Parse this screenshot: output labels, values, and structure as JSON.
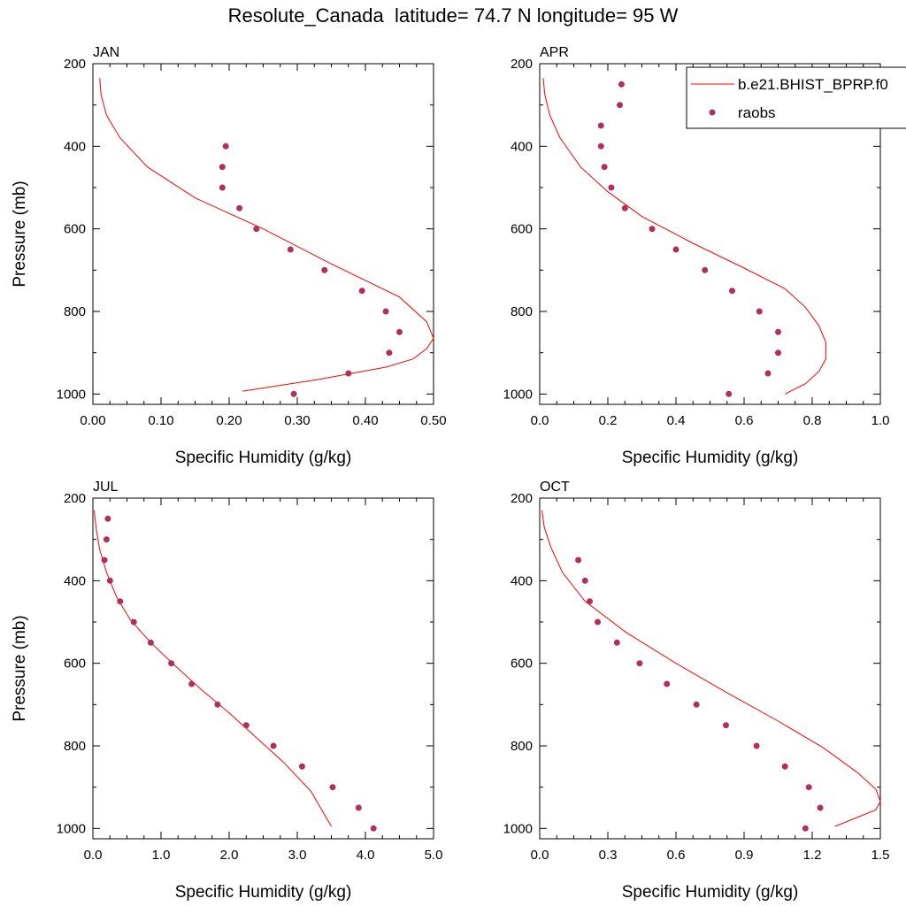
{
  "title": "Resolute_Canada  latitude= 74.7 N longitude= 95 W",
  "colors": {
    "model": "#ff0000",
    "obs": "#b0305a",
    "axis": "#000000"
  },
  "legend": {
    "model_label": "b.e21.BHIST_BPRP.f0",
    "obs_label": "raobs",
    "placement": "top-right of APR panel"
  },
  "chart_data": [
    {
      "type": "line+scatter",
      "panel": "JAN",
      "title": "JAN",
      "xlabel": "Specific Humidity (g/kg)",
      "ylabel": "Pressure (mb)",
      "xlim": [
        0.0,
        0.5
      ],
      "ylim": [
        1025,
        200
      ],
      "xticks": [
        "0.00",
        "0.10",
        "0.20",
        "0.30",
        "0.40",
        "0.50"
      ],
      "yticks": [
        "200",
        "400",
        "600",
        "800",
        "1000"
      ],
      "series": [
        {
          "name": "b.e21.BHIST_BPRP.f0",
          "kind": "line",
          "q": [
            0.01,
            0.012,
            0.02,
            0.04,
            0.08,
            0.15,
            0.25,
            0.35,
            0.45,
            0.49,
            0.5,
            0.49,
            0.47,
            0.43,
            0.33,
            0.22
          ],
          "p": [
            235,
            275,
            325,
            380,
            450,
            525,
            600,
            685,
            765,
            825,
            865,
            890,
            915,
            935,
            965,
            993
          ]
        },
        {
          "name": "raobs",
          "kind": "scatter",
          "q": [
            0.195,
            0.19,
            0.19,
            0.215,
            0.24,
            0.29,
            0.34,
            0.395,
            0.43,
            0.45,
            0.435,
            0.375,
            0.295
          ],
          "p": [
            400,
            450,
            500,
            550,
            600,
            650,
            700,
            750,
            800,
            850,
            900,
            950,
            1000
          ]
        }
      ]
    },
    {
      "type": "line+scatter",
      "panel": "APR",
      "title": "APR",
      "xlabel": "Specific Humidity (g/kg)",
      "ylabel": "",
      "xlim": [
        0.0,
        1.0
      ],
      "ylim": [
        1025,
        200
      ],
      "xticks": [
        "0.0",
        "0.2",
        "0.4",
        "0.6",
        "0.8",
        "1.0"
      ],
      "yticks": [
        "200",
        "400",
        "600",
        "800",
        "1000"
      ],
      "series": [
        {
          "name": "b.e21.BHIST_BPRP.f0",
          "kind": "line",
          "q": [
            0.01,
            0.015,
            0.03,
            0.06,
            0.12,
            0.2,
            0.3,
            0.45,
            0.6,
            0.72,
            0.78,
            0.82,
            0.84,
            0.84,
            0.82,
            0.78,
            0.72
          ],
          "p": [
            235,
            275,
            325,
            380,
            450,
            510,
            570,
            635,
            695,
            745,
            790,
            835,
            875,
            915,
            945,
            975,
            1000
          ]
        },
        {
          "name": "raobs",
          "kind": "scatter",
          "q": [
            0.24,
            0.235,
            0.18,
            0.18,
            0.19,
            0.21,
            0.25,
            0.33,
            0.4,
            0.485,
            0.565,
            0.645,
            0.7,
            0.7,
            0.67,
            0.555
          ],
          "p": [
            250,
            300,
            350,
            400,
            450,
            500,
            550,
            600,
            650,
            700,
            750,
            800,
            850,
            900,
            950,
            1000
          ]
        }
      ]
    },
    {
      "type": "line+scatter",
      "panel": "JUL",
      "title": "JUL",
      "xlabel": "Specific Humidity (g/kg)",
      "ylabel": "Pressure (mb)",
      "xlim": [
        0.0,
        5.0
      ],
      "ylim": [
        1025,
        200
      ],
      "xticks": [
        "0.0",
        "1.0",
        "2.0",
        "3.0",
        "4.0",
        "5.0"
      ],
      "yticks": [
        "200",
        "400",
        "600",
        "800",
        "1000"
      ],
      "series": [
        {
          "name": "b.e21.BHIST_BPRP.f0",
          "kind": "line",
          "q": [
            0.02,
            0.05,
            0.1,
            0.2,
            0.35,
            0.55,
            0.85,
            1.2,
            1.6,
            2.0,
            2.4,
            2.8,
            3.2,
            3.5
          ],
          "p": [
            230,
            275,
            325,
            380,
            440,
            495,
            550,
            605,
            665,
            720,
            780,
            840,
            910,
            995
          ]
        },
        {
          "name": "raobs",
          "kind": "scatter",
          "q": [
            0.22,
            0.2,
            0.17,
            0.25,
            0.4,
            0.6,
            0.85,
            1.15,
            1.45,
            1.83,
            2.25,
            2.65,
            3.07,
            3.52,
            3.9,
            4.12
          ],
          "p": [
            250,
            300,
            350,
            400,
            450,
            500,
            550,
            600,
            650,
            700,
            750,
            800,
            850,
            900,
            950,
            1000
          ]
        }
      ]
    },
    {
      "type": "line+scatter",
      "panel": "OCT",
      "title": "OCT",
      "xlabel": "Specific Humidity (g/kg)",
      "ylabel": "",
      "xlim": [
        0.0,
        1.5
      ],
      "ylim": [
        1025,
        200
      ],
      "xticks": [
        "0.0",
        "0.3",
        "0.6",
        "0.9",
        "1.2",
        "1.5"
      ],
      "yticks": [
        "200",
        "400",
        "600",
        "800",
        "1000"
      ],
      "series": [
        {
          "name": "b.e21.BHIST_BPRP.f0",
          "kind": "line",
          "q": [
            0.01,
            0.02,
            0.05,
            0.1,
            0.2,
            0.38,
            0.6,
            0.82,
            1.05,
            1.25,
            1.4,
            1.48,
            1.5,
            1.48,
            1.3
          ],
          "p": [
            230,
            270,
            320,
            380,
            450,
            525,
            600,
            670,
            740,
            805,
            865,
            905,
            935,
            955,
            995
          ]
        },
        {
          "name": "raobs",
          "kind": "scatter",
          "q": [
            0.17,
            0.2,
            0.22,
            0.255,
            0.34,
            0.44,
            0.56,
            0.69,
            0.82,
            0.955,
            1.08,
            1.185,
            1.235,
            1.17
          ],
          "p": [
            350,
            400,
            450,
            500,
            550,
            600,
            650,
            700,
            750,
            800,
            850,
            900,
            950,
            1000
          ]
        }
      ]
    }
  ]
}
